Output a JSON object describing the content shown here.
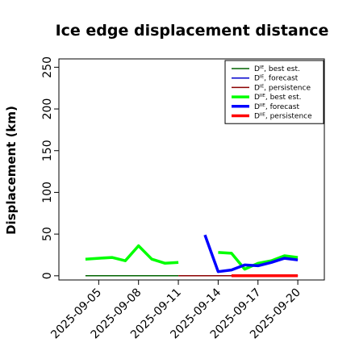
{
  "chart_data": {
    "type": "line",
    "title": "Ice edge displacement distance",
    "xlabel": "",
    "ylabel": "Displacement (km)",
    "ylim": [
      -5,
      260
    ],
    "yticks": [
      0,
      50,
      100,
      150,
      200,
      250
    ],
    "xlim": [
      "2025-09-02",
      "2025-09-22"
    ],
    "xticks": [
      "2025-09-05",
      "2025-09-08",
      "2025-09-11",
      "2025-09-14",
      "2025-09-17",
      "2025-09-20"
    ],
    "highlight_tick": "2025-09-11",
    "highlight_color": "#228b22",
    "legend": {
      "location": "upper-right"
    },
    "series": [
      {
        "name": "Dᴵᴱ, best est.",
        "color": "#006400",
        "width": "thin",
        "x": [
          "2025-09-04",
          "2025-09-05",
          "2025-09-06",
          "2025-09-07",
          "2025-09-08",
          "2025-09-09",
          "2025-09-10",
          "2025-09-11"
        ],
        "y": [
          0,
          0,
          0,
          0,
          0,
          0,
          0,
          0
        ]
      },
      {
        "name": "Dᴵᴱ, forecast",
        "color": "#0000cd",
        "width": "thin",
        "x": [
          "2025-09-13",
          "2025-09-14",
          "2025-09-15",
          "2025-09-16",
          "2025-09-17",
          "2025-09-18",
          "2025-09-19",
          "2025-09-20"
        ],
        "y": [
          0,
          0,
          0,
          0,
          0,
          0,
          0,
          0
        ]
      },
      {
        "name": "Dᴵᴱ, persistence",
        "color": "#8b0000",
        "width": "thin",
        "x": [
          "2025-09-11",
          "2025-09-12",
          "2025-09-13",
          "2025-09-14",
          "2025-09-15",
          "2025-09-16",
          "2025-09-17",
          "2025-09-18",
          "2025-09-19",
          "2025-09-20"
        ],
        "y": [
          0,
          0,
          0,
          0,
          0,
          0,
          0,
          0,
          0,
          0
        ]
      },
      {
        "name": "Dᴵᴵᴱ, best est.",
        "color": "#00ff00",
        "width": "thick",
        "x": [
          "2025-09-04",
          "2025-09-05",
          "2025-09-06",
          "2025-09-07",
          "2025-09-08",
          "2025-09-09",
          "2025-09-10",
          "2025-09-11",
          "2025-09-13",
          "2025-09-14",
          "2025-09-15",
          "2025-09-16",
          "2025-09-17",
          "2025-09-18",
          "2025-09-19",
          "2025-09-20"
        ],
        "y": [
          20,
          21,
          22,
          18,
          36,
          20,
          15,
          16,
          null,
          28,
          27,
          8,
          15,
          18,
          24,
          22
        ]
      },
      {
        "name": "Dᴵᴵᴱ, forecast",
        "color": "#0000ff",
        "width": "thick",
        "x": [
          "2025-09-13",
          "2025-09-14",
          "2025-09-15",
          "2025-09-16",
          "2025-09-17",
          "2025-09-18",
          "2025-09-19",
          "2025-09-20"
        ],
        "y": [
          49,
          5,
          7,
          13,
          12,
          16,
          21,
          19
        ]
      },
      {
        "name": "Dᴵᴵᴱ, persistence",
        "color": "#ff0000",
        "width": "thick",
        "x": [
          "2025-09-15",
          "2025-09-16",
          "2025-09-17",
          "2025-09-18",
          "2025-09-19",
          "2025-09-20"
        ],
        "y": [
          0,
          0,
          0,
          0,
          0,
          0
        ]
      }
    ]
  }
}
